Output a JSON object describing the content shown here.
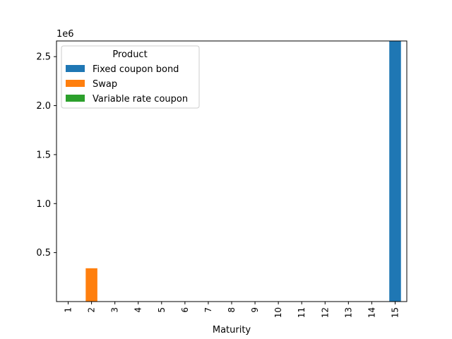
{
  "chart_data": {
    "type": "bar",
    "stacked": true,
    "categories": [
      "1",
      "2",
      "3",
      "4",
      "5",
      "6",
      "7",
      "8",
      "9",
      "10",
      "11",
      "12",
      "13",
      "14",
      "15"
    ],
    "series": [
      {
        "name": "Fixed coupon bond",
        "color": "#1f77b4",
        "values": [
          0,
          0,
          0,
          0,
          0,
          0,
          0,
          0,
          0,
          0,
          0,
          0,
          0,
          0,
          2660000
        ]
      },
      {
        "name": "Swap",
        "color": "#ff7f0e",
        "values": [
          0,
          340000,
          0,
          0,
          0,
          0,
          0,
          0,
          0,
          0,
          0,
          0,
          0,
          0,
          0
        ]
      },
      {
        "name": "Variable rate coupon",
        "color": "#2ca02c",
        "values": [
          0,
          0,
          0,
          0,
          0,
          0,
          0,
          0,
          0,
          0,
          0,
          0,
          0,
          0,
          0
        ]
      }
    ],
    "xlabel": "Maturity",
    "ylabel": "",
    "ylim": [
      0,
      2660000
    ],
    "yticks": [
      500000,
      1000000,
      1500000,
      2000000,
      2500000
    ],
    "ytick_labels": [
      "0.5",
      "1.0",
      "1.5",
      "2.0",
      "2.5"
    ],
    "scale_label": "1e6",
    "legend": {
      "title": "Product",
      "placement": "top-left"
    },
    "grid": false
  }
}
